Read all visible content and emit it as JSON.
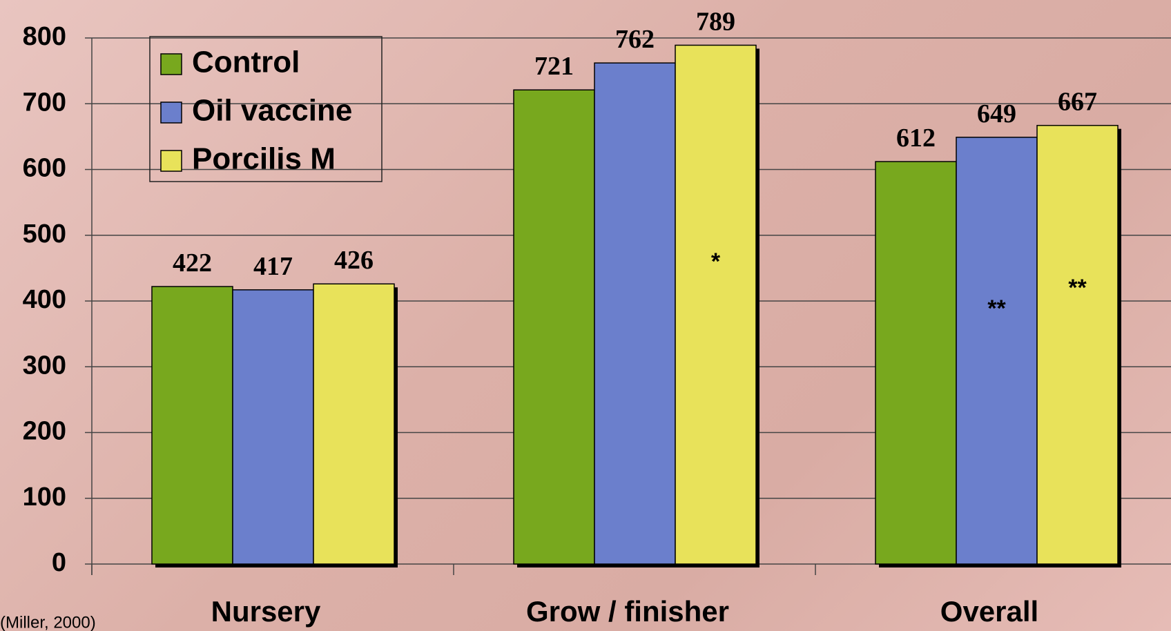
{
  "chart_data": {
    "type": "bar",
    "categories": [
      "Nursery",
      "Grow  / finisher",
      "Overall"
    ],
    "series": [
      {
        "name": "Control",
        "color": "#78a81e",
        "values": [
          422,
          721,
          612
        ]
      },
      {
        "name": "Oil vaccine",
        "color": "#6b7fcc",
        "values": [
          417,
          762,
          649
        ]
      },
      {
        "name": "Porcilis M",
        "color": "#e8e25a",
        "values": [
          426,
          789,
          667
        ]
      }
    ],
    "ylim": [
      0,
      800
    ],
    "yticks": [
      0,
      100,
      200,
      300,
      400,
      500,
      600,
      700,
      800
    ],
    "grid": true,
    "legend": "top-left",
    "annotations": [
      "*",
      "**",
      "**"
    ],
    "source": "(Miller, 2000)"
  }
}
